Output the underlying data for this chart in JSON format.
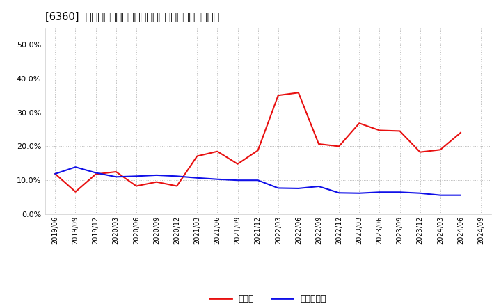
{
  "title": "[6360]  現預金、有利子負債の総資産に対する比率の推移",
  "x_labels": [
    "2019/06",
    "2019/09",
    "2019/12",
    "2020/03",
    "2020/06",
    "2020/09",
    "2020/12",
    "2021/03",
    "2021/06",
    "2021/09",
    "2021/12",
    "2022/03",
    "2022/06",
    "2022/09",
    "2022/12",
    "2023/03",
    "2023/06",
    "2023/09",
    "2023/12",
    "2024/03",
    "2024/06",
    "2024/09"
  ],
  "cash_values": [
    0.119,
    0.066,
    0.118,
    0.125,
    0.083,
    0.095,
    0.083,
    0.171,
    0.185,
    0.148,
    0.188,
    0.35,
    0.358,
    0.207,
    0.2,
    0.268,
    0.247,
    0.245,
    0.183,
    0.19,
    0.24,
    null
  ],
  "debt_values": [
    0.119,
    0.139,
    0.122,
    0.11,
    0.112,
    0.115,
    0.112,
    0.107,
    0.103,
    0.1,
    0.1,
    0.077,
    0.076,
    0.082,
    0.063,
    0.062,
    0.065,
    0.065,
    0.062,
    0.056,
    0.056,
    null
  ],
  "cash_color": "#e81010",
  "debt_color": "#1010e8",
  "bg_color": "#ffffff",
  "plot_bg_color": "#ffffff",
  "grid_color": "#aaaaaa",
  "ylim": [
    0.0,
    0.55
  ],
  "yticks": [
    0.0,
    0.1,
    0.2,
    0.3,
    0.4,
    0.5
  ],
  "legend_cash": "現預金",
  "legend_debt": "有利子負債"
}
